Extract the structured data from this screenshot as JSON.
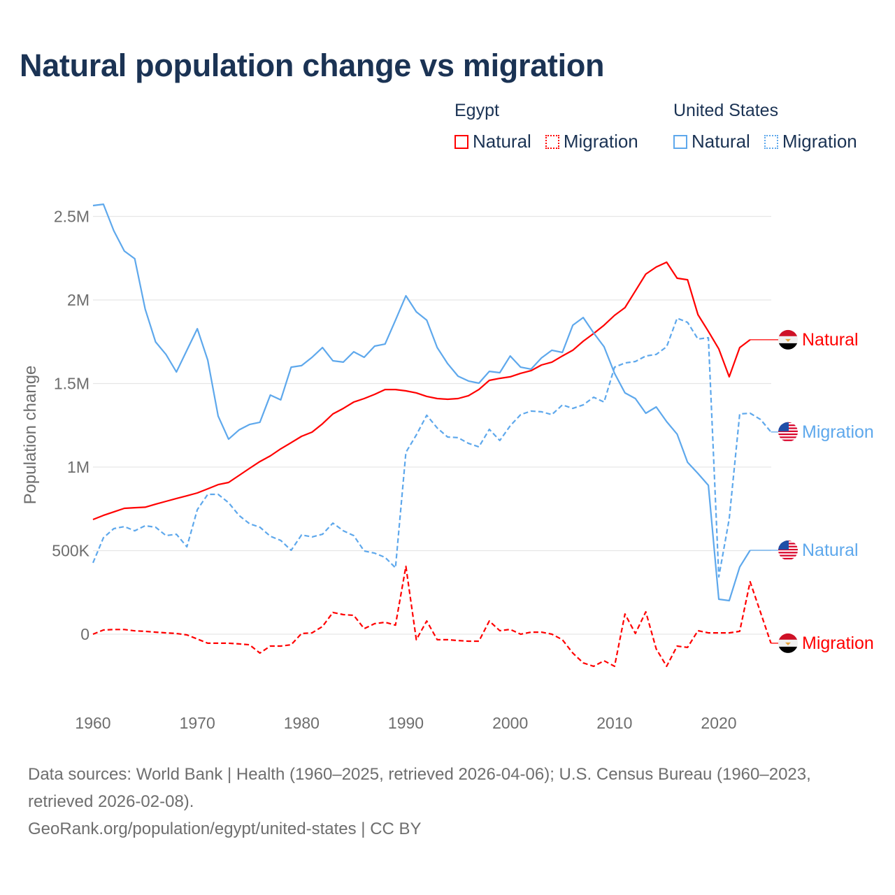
{
  "title": "Natural population change vs migration",
  "legend": {
    "groups": [
      {
        "name": "Egypt",
        "items": [
          {
            "label": "Natural",
            "style": "solid"
          },
          {
            "label": "Migration",
            "style": "dotted"
          }
        ],
        "color": "#ff0000"
      },
      {
        "name": "United States",
        "items": [
          {
            "label": "Natural",
            "style": "solid"
          },
          {
            "label": "Migration",
            "style": "dotted"
          }
        ],
        "color": "#5ea8ec"
      }
    ]
  },
  "footer": {
    "sources": "Data sources: World Bank | Health (1960–2025, retrieved 2026-04-06); U.S. Census Bureau (1960–2023, retrieved 2026-02-08).",
    "credit": "GeoRank.org/population/egypt/united-states | CC BY"
  },
  "chart_data": {
    "type": "line",
    "title": "Natural population change vs migration",
    "xlabel": "",
    "ylabel": "Population change",
    "xlim": [
      1960,
      2025
    ],
    "ylim": [
      -250000,
      2600000
    ],
    "x_ticks": [
      1960,
      1970,
      1980,
      1990,
      2000,
      2010,
      2020
    ],
    "y_ticks": [
      0,
      500000,
      1000000,
      1500000,
      2000000,
      2500000
    ],
    "y_tick_labels": [
      "0",
      "500K",
      "1M",
      "1.5M",
      "2M",
      "2.5M"
    ],
    "grid": "horizontal",
    "legend_placement": "top-right",
    "series": [
      {
        "name": "Egypt Natural",
        "country": "Egypt",
        "label": "Natural",
        "color": "#ff0000",
        "dash": "solid",
        "flag": "egypt-flag",
        "start_year": 1960,
        "values": [
          686,
          711,
          732,
          753,
          757,
          760,
          778,
          795,
          812,
          828,
          845,
          870,
          895,
          908,
          950,
          992,
          1033,
          1067,
          1109,
          1146,
          1184,
          1209,
          1259,
          1318,
          1351,
          1389,
          1410,
          1435,
          1464,
          1464,
          1456,
          1444,
          1423,
          1410,
          1406,
          1410,
          1427,
          1464,
          1519,
          1531,
          1540,
          1561,
          1577,
          1611,
          1628,
          1665,
          1699,
          1753,
          1799,
          1849,
          1908,
          1954,
          2054,
          2155,
          2197,
          2226,
          2130,
          2121,
          1912,
          1812,
          1707,
          1540,
          1715,
          1762
        ]
      },
      {
        "name": "Egypt Migration",
        "country": "Egypt",
        "label": "Migration",
        "color": "#ff0000",
        "dash": "dashed",
        "flag": "egypt-flag",
        "start_year": 1960,
        "values": [
          0,
          25,
          28,
          28,
          20,
          17,
          12,
          8,
          4,
          -4,
          -29,
          -54,
          -54,
          -54,
          -58,
          -63,
          -113,
          -71,
          -71,
          -63,
          4,
          8,
          46,
          130,
          117,
          113,
          33,
          63,
          71,
          54,
          406,
          -33,
          79,
          -33,
          -33,
          -38,
          -42,
          -42,
          79,
          21,
          29,
          0,
          12,
          12,
          0,
          -33,
          -113,
          -172,
          -192,
          -159,
          -192,
          121,
          4,
          134,
          -88,
          -192,
          -71,
          -79,
          21,
          8,
          8,
          8,
          17,
          314,
          130,
          -54
        ]
      },
      {
        "name": "United States Natural",
        "country": "United States",
        "label": "Natural",
        "color": "#5ea8ec",
        "dash": "solid",
        "flag": "us-flag",
        "start_year": 1960,
        "values": [
          2565,
          2573,
          2414,
          2293,
          2247,
          1946,
          1749,
          1674,
          1569,
          1699,
          1828,
          1640,
          1305,
          1167,
          1222,
          1255,
          1268,
          1431,
          1402,
          1598,
          1607,
          1657,
          1715,
          1636,
          1628,
          1690,
          1657,
          1724,
          1736,
          1879,
          2025,
          1929,
          1879,
          1715,
          1619,
          1544,
          1515,
          1502,
          1573,
          1565,
          1665,
          1598,
          1586,
          1653,
          1699,
          1686,
          1849,
          1895,
          1803,
          1720,
          1561,
          1444,
          1410,
          1322,
          1360,
          1272,
          1197,
          1029,
          962,
          891,
          209,
          201,
          402,
          502
        ]
      },
      {
        "name": "United States Migration",
        "country": "United States",
        "label": "Migration",
        "color": "#5ea8ec",
        "dash": "dashed",
        "flag": "us-flag",
        "start_year": 1960,
        "values": [
          427,
          577,
          632,
          644,
          619,
          649,
          640,
          590,
          598,
          523,
          745,
          837,
          837,
          787,
          711,
          661,
          640,
          586,
          561,
          502,
          594,
          582,
          598,
          665,
          619,
          590,
          498,
          485,
          460,
          397,
          1088,
          1192,
          1310,
          1234,
          1180,
          1176,
          1142,
          1121,
          1226,
          1159,
          1247,
          1314,
          1335,
          1331,
          1314,
          1372,
          1351,
          1372,
          1418,
          1389,
          1598,
          1623,
          1632,
          1665,
          1674,
          1720,
          1891,
          1866,
          1766,
          1774,
          343,
          690,
          1318,
          1322,
          1285,
          1210
        ]
      }
    ],
    "value_unit": "thousands"
  }
}
